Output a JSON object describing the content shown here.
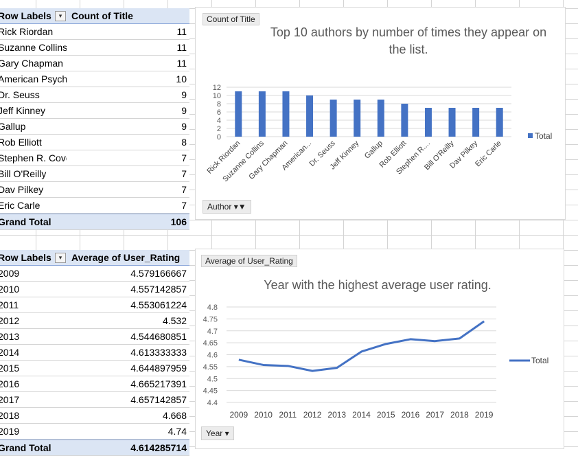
{
  "pivot1": {
    "header_label": "Row Labels",
    "header_value": "Count of Title",
    "rows": [
      {
        "label": "Rick Riordan",
        "value": "11"
      },
      {
        "label": "Suzanne Collins",
        "value": "11"
      },
      {
        "label": "Gary Chapman",
        "value": "11"
      },
      {
        "label": "American Psychological Association",
        "value": "10"
      },
      {
        "label": "Dr. Seuss",
        "value": "9"
      },
      {
        "label": "Jeff Kinney",
        "value": "9"
      },
      {
        "label": "Gallup",
        "value": "9"
      },
      {
        "label": "Rob Elliott",
        "value": "8"
      },
      {
        "label": "Stephen R. Covey",
        "value": "7"
      },
      {
        "label": "Bill O'Reilly",
        "value": "7"
      },
      {
        "label": "Dav Pilkey",
        "value": "7"
      },
      {
        "label": "Eric Carle",
        "value": "7"
      }
    ],
    "total_label": "Grand Total",
    "total_value": "106"
  },
  "pivot2": {
    "header_label": "Row Labels",
    "header_value": "Average of User_Rating",
    "rows": [
      {
        "label": "2009",
        "value": "4.579166667"
      },
      {
        "label": "2010",
        "value": "4.557142857"
      },
      {
        "label": "2011",
        "value": "4.553061224"
      },
      {
        "label": "2012",
        "value": "4.532"
      },
      {
        "label": "2013",
        "value": "4.544680851"
      },
      {
        "label": "2014",
        "value": "4.613333333"
      },
      {
        "label": "2015",
        "value": "4.644897959"
      },
      {
        "label": "2016",
        "value": "4.665217391"
      },
      {
        "label": "2017",
        "value": "4.657142857"
      },
      {
        "label": "2018",
        "value": "4.668"
      },
      {
        "label": "2019",
        "value": "4.74"
      }
    ],
    "total_label": "Grand Total",
    "total_value": "4.614285714"
  },
  "chart1": {
    "field_tag": "Count of Title",
    "axis_button": "Author",
    "filter_icon": "funnel-icon"
  },
  "chart2": {
    "field_tag": "Average of User_Rating",
    "axis_button": "Year",
    "dropdown_icon": "chevron-down-icon"
  },
  "chart_data": [
    {
      "type": "bar",
      "title": "Top 10 authors by number of times they appear on the list.",
      "categories": [
        "Rick Riordan",
        "Suzanne Collins",
        "Gary Chapman",
        "American...",
        "Dr. Seuss",
        "Jeff Kinney",
        "Gallup",
        "Rob Elliott",
        "Stephen R....",
        "Bill O'Reilly",
        "Dav Pilkey",
        "Eric Carle"
      ],
      "series": [
        {
          "name": "Total",
          "values": [
            11,
            11,
            11,
            10,
            9,
            9,
            9,
            8,
            7,
            7,
            7,
            7
          ]
        }
      ],
      "yticks": [
        "0",
        "2",
        "4",
        "6",
        "8",
        "10",
        "12"
      ],
      "ylim": [
        0,
        12
      ],
      "legend": "right",
      "grid": true,
      "color": "#4472c4"
    },
    {
      "type": "line",
      "title": "Year with the highest average user rating.",
      "categories": [
        "2009",
        "2010",
        "2011",
        "2012",
        "2013",
        "2014",
        "2015",
        "2016",
        "2017",
        "2018",
        "2019"
      ],
      "series": [
        {
          "name": "Total",
          "values": [
            4.579,
            4.557,
            4.553,
            4.532,
            4.545,
            4.613,
            4.645,
            4.665,
            4.657,
            4.668,
            4.74
          ]
        }
      ],
      "yticks": [
        "4.4",
        "4.45",
        "4.5",
        "4.55",
        "4.6",
        "4.65",
        "4.7",
        "4.75",
        "4.8"
      ],
      "ylim": [
        4.4,
        4.8
      ],
      "legend": "right",
      "grid": true,
      "color": "#4472c4"
    }
  ]
}
